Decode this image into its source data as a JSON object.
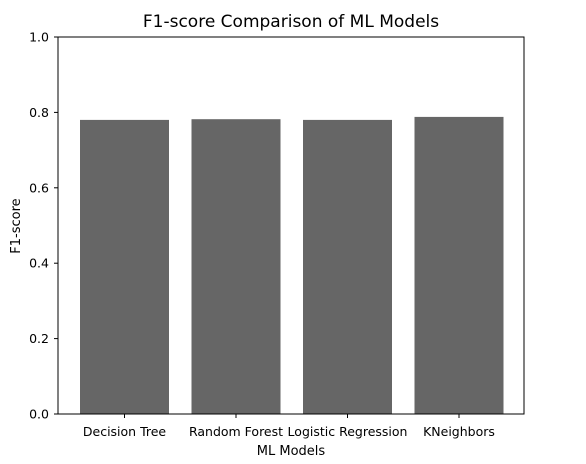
{
  "chart_data": {
    "type": "bar",
    "title": "F1-score Comparison of ML Models",
    "xlabel": "ML Models",
    "ylabel": "F1-score",
    "categories": [
      "Decision Tree",
      "Random Forest",
      "Logistic Regression",
      "KNeighbors"
    ],
    "values": [
      0.78,
      0.782,
      0.78,
      0.788
    ],
    "ylim": [
      0.0,
      1.0
    ],
    "yticks": [
      "0.0",
      "0.2",
      "0.4",
      "0.6",
      "0.8",
      "1.0"
    ],
    "bar_color": "#666666",
    "grid": false,
    "legend": "none"
  }
}
